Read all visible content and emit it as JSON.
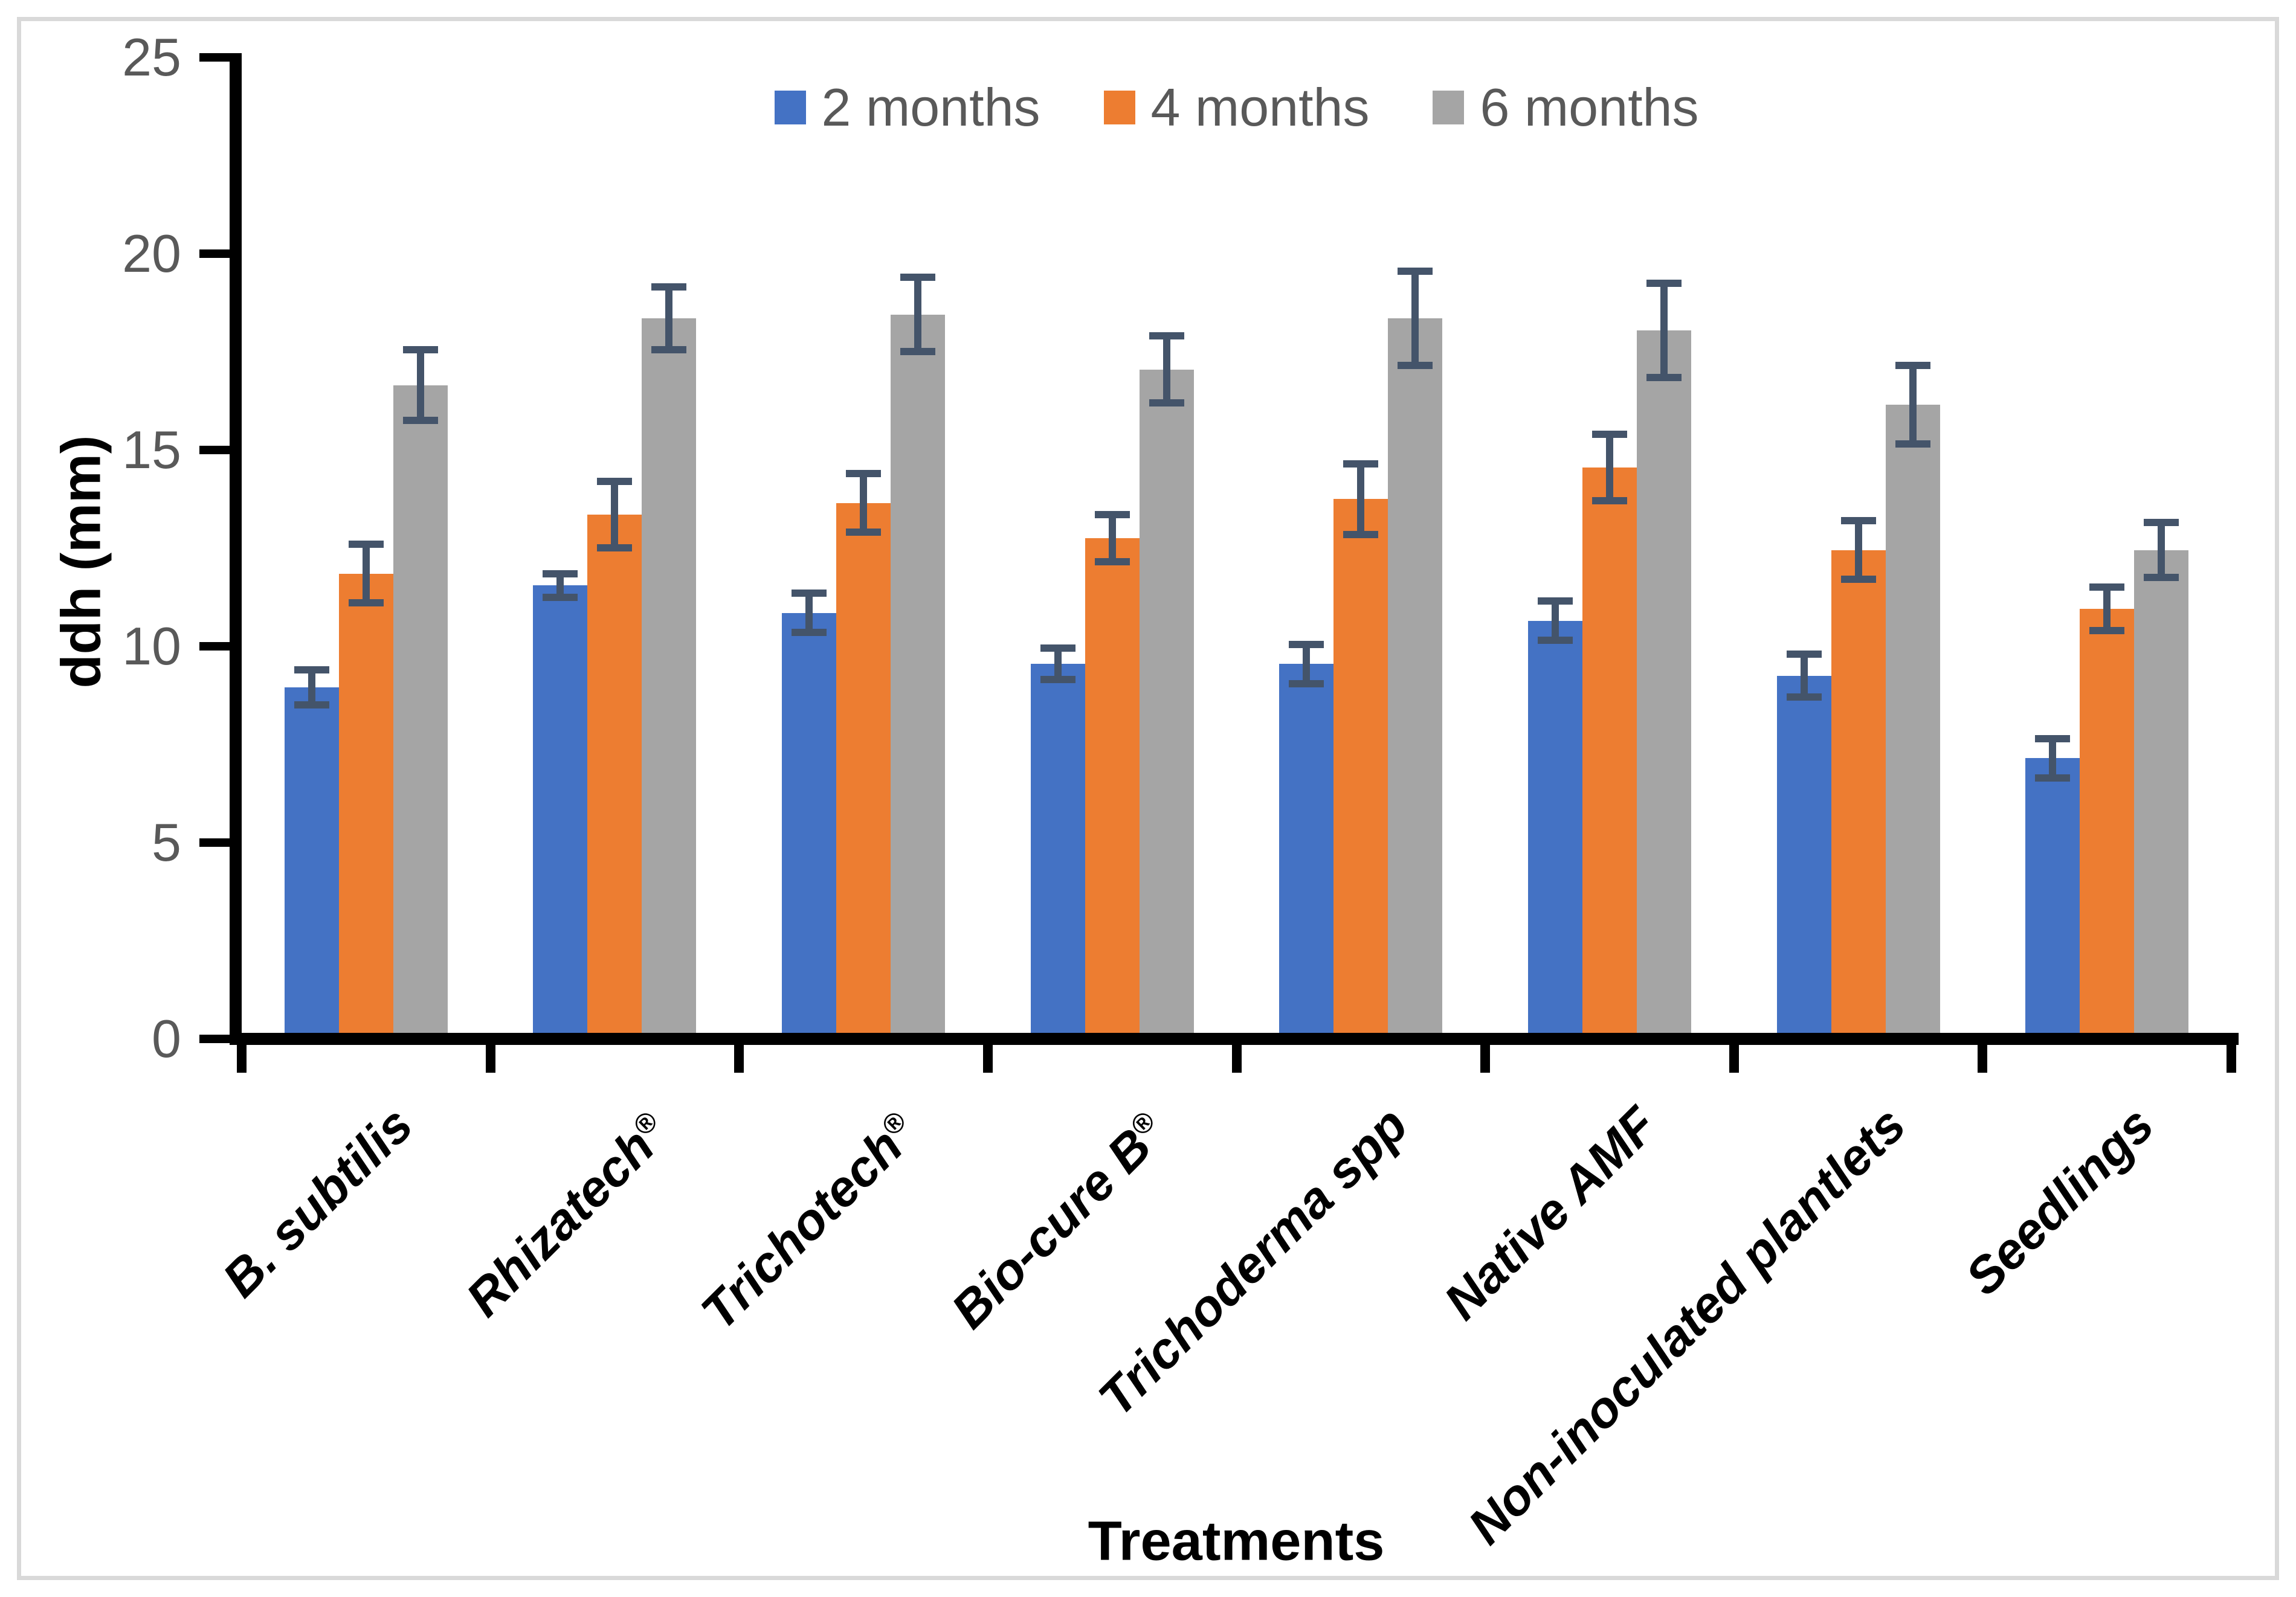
{
  "figure": {
    "border_color": "#D9D9D9",
    "background_color": "#FFFFFF"
  },
  "chart_data": {
    "type": "bar",
    "title": "",
    "xlabel": "Treatments",
    "ylabel": "ddh (mm)",
    "ylim": [
      0,
      25
    ],
    "yticks": [
      0,
      5,
      10,
      15,
      20,
      25
    ],
    "grid": false,
    "legend_position": "top-center",
    "categories": [
      "B. subtilis",
      "Rhizatech®",
      "Trichotech®",
      "Bio-cure B®",
      "Trichoderma spp",
      "Native AMF",
      "Non-inoculated plantlets",
      "Seedlings"
    ],
    "series": [
      {
        "name": "2 months",
        "color": "#4472C4",
        "values": [
          8.8,
          11.4,
          10.7,
          9.4,
          9.4,
          10.5,
          9.1,
          7.0
        ],
        "errors": [
          0.45,
          0.3,
          0.5,
          0.4,
          0.5,
          0.5,
          0.55,
          0.5
        ]
      },
      {
        "name": "4 months",
        "color": "#ED7D31",
        "values": [
          11.7,
          13.2,
          13.5,
          12.6,
          13.6,
          14.4,
          12.3,
          10.8
        ],
        "errors": [
          0.75,
          0.85,
          0.75,
          0.6,
          0.9,
          0.85,
          0.75,
          0.55
        ]
      },
      {
        "name": "6 months",
        "color": "#A5A5A5",
        "values": [
          16.5,
          18.2,
          18.3,
          16.9,
          18.2,
          17.9,
          16.0,
          12.3
        ],
        "errors": [
          0.9,
          0.8,
          0.95,
          0.85,
          1.2,
          1.2,
          1.0,
          0.7
        ]
      }
    ],
    "error_bar_color": "#44546A",
    "axis_line_color": "#000000",
    "tick_label_color": "#595959",
    "legend_text_color": "#595959"
  }
}
